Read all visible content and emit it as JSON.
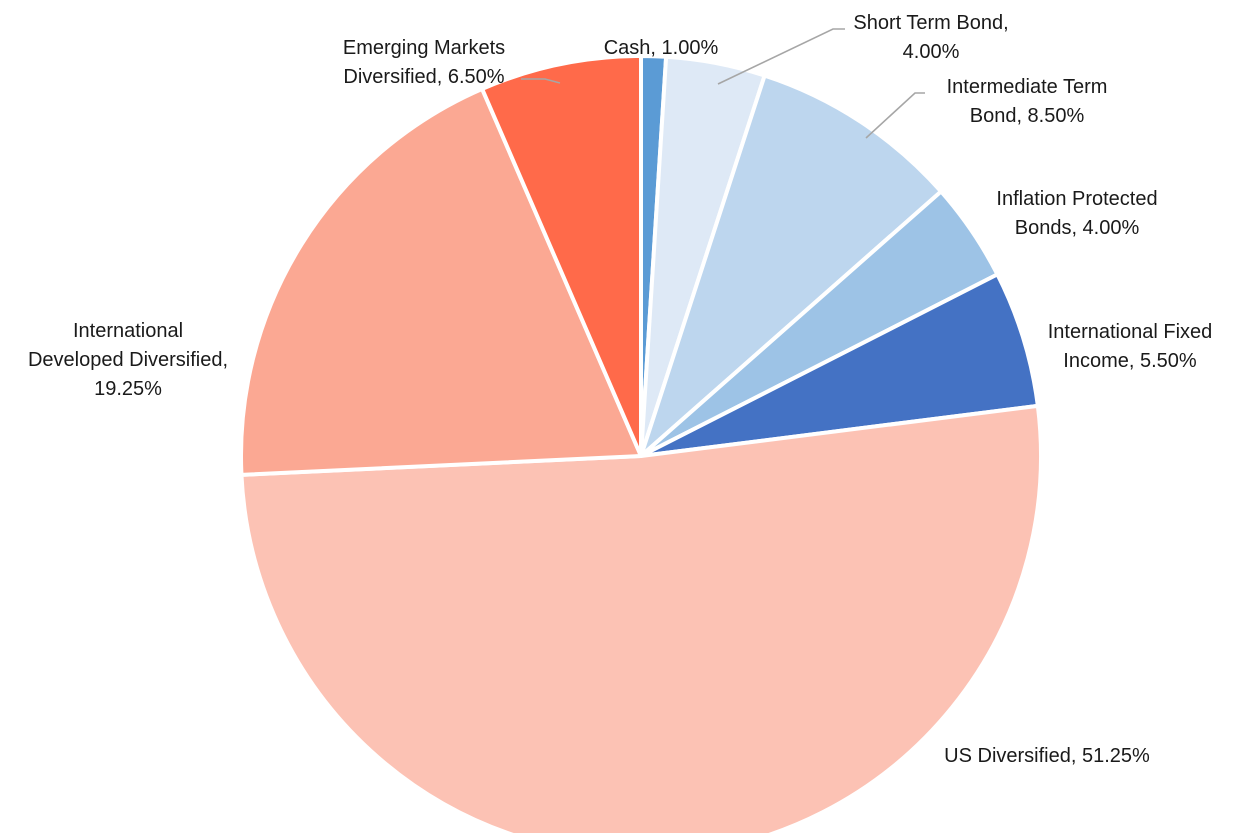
{
  "chart_data": {
    "type": "pie",
    "title": "",
    "slices": [
      {
        "name": "Cash",
        "value": 1.0,
        "label": [
          "Cash, 1.00%"
        ],
        "color": "#5b9bd5"
      },
      {
        "name": "Short Term Bond",
        "value": 4.0,
        "label": [
          "Short Term Bond,",
          "4.00%"
        ],
        "color": "#dee9f6"
      },
      {
        "name": "Intermediate Term Bond",
        "value": 8.5,
        "label": [
          "Intermediate Term",
          "Bond, 8.50%"
        ],
        "color": "#bdd6ee"
      },
      {
        "name": "Inflation Protected Bonds",
        "value": 4.0,
        "label": [
          "Inflation Protected",
          "Bonds, 4.00%"
        ],
        "color": "#9dc3e6"
      },
      {
        "name": "International Fixed Income",
        "value": 5.5,
        "label": [
          "International Fixed",
          "Income, 5.50%"
        ],
        "color": "#4472c4"
      },
      {
        "name": "US Diversified",
        "value": 51.25,
        "label": [
          "US Diversified, 51.25%"
        ],
        "color": "#fcc2b4"
      },
      {
        "name": "International Developed Diversified",
        "value": 19.25,
        "label": [
          "International",
          "Developed Diversified,",
          "19.25%"
        ],
        "color": "#fba893"
      },
      {
        "name": "Emerging Markets Diversified",
        "value": 6.5,
        "label": [
          "Emerging Markets",
          "Diversified, 6.50%"
        ],
        "color": "#ff6a4a"
      }
    ],
    "legend": "none"
  }
}
